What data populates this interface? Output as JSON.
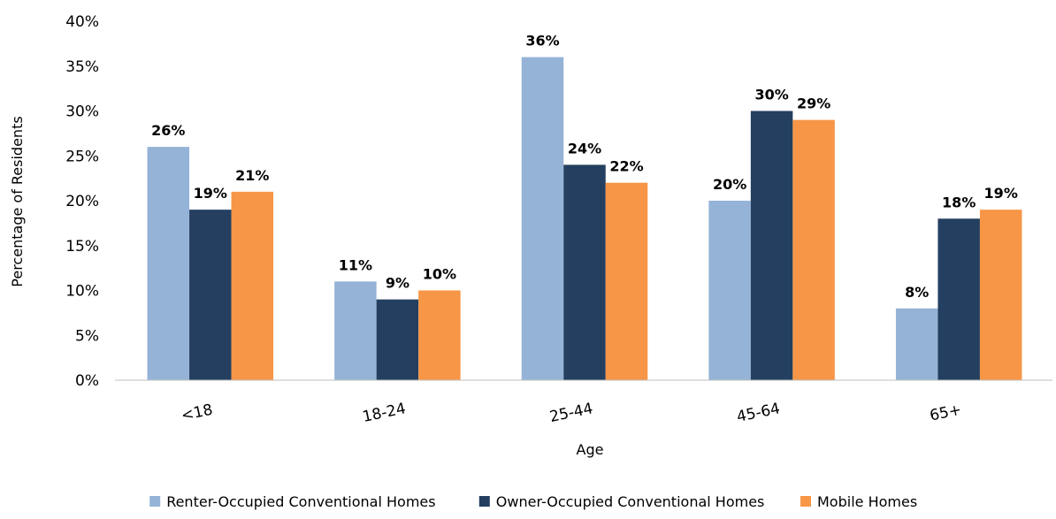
{
  "chart_data": {
    "type": "bar",
    "title": "",
    "xlabel": "Age",
    "ylabel": "Percentage of Residents",
    "categories": [
      "<18",
      "18-24",
      "25-44",
      "45-64",
      "65+"
    ],
    "series": [
      {
        "name": "Renter-Occupied Conventional Homes",
        "color": "#95B3D7",
        "values": [
          26,
          11,
          36,
          20,
          8
        ]
      },
      {
        "name": "Owner-Occupied Conventional Homes",
        "color": "#243F60",
        "values": [
          19,
          9,
          24,
          30,
          18
        ]
      },
      {
        "name": "Mobile Homes",
        "color": "#F79646",
        "values": [
          21,
          10,
          22,
          29,
          19
        ]
      }
    ],
    "ylim": [
      0,
      40
    ],
    "yticks": [
      0,
      5,
      10,
      15,
      20,
      25,
      30,
      35,
      40
    ],
    "value_suffix": "%",
    "grid": false,
    "legend_position": "bottom"
  }
}
